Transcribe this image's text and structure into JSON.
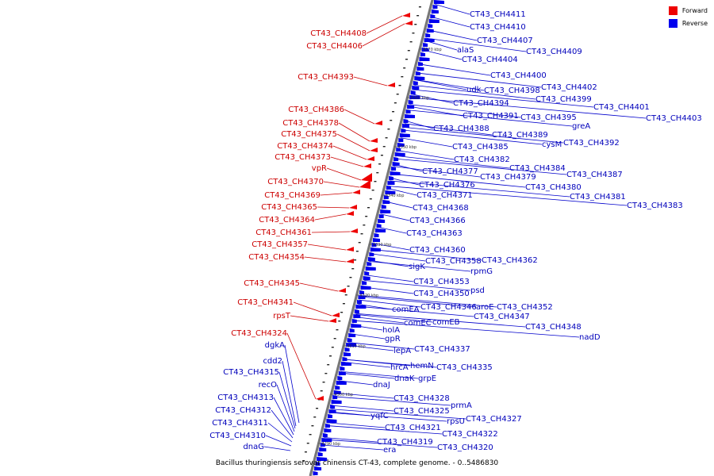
{
  "legend": {
    "forward": {
      "label": "Forward",
      "color": "#ee0000"
    },
    "reverse": {
      "label": "Reverse",
      "color": "#0000ee"
    }
  },
  "caption": "Bacillus thuringiensis serovar chinensis CT-43, complete genome. - 0..5486830",
  "axis_ticks": [
    "4370 kbp",
    "4360 kbp",
    "4350 kbp",
    "4340 kbp",
    "4330 kbp",
    "4320 kbp",
    "4310 kbp",
    "4300 kbp",
    "4290 kbp"
  ],
  "forward_genes": [
    "CT43_CH4408",
    "CT43_CH4406",
    "CT43_CH4393",
    "CT43_CH4386",
    "CT43_CH4378",
    "CT43_CH4375",
    "CT43_CH4374",
    "CT43_CH4373",
    "vpR",
    "CT43_CH4370",
    "CT43_CH4369",
    "CT43_CH4365",
    "CT43_CH4364",
    "CT43_CH4361",
    "CT43_CH4357",
    "CT43_CH4354",
    "CT43_CH4345",
    "CT43_CH4341",
    "rpsT",
    "CT43_CH4324"
  ],
  "reverse_left_genes": [
    "dgkA",
    "cdd2",
    "CT43_CH4315",
    "recO",
    "CT43_CH4313",
    "CT43_CH4312",
    "CT43_CH4311",
    "CT43_CH4310",
    "dnaG"
  ],
  "reverse_genes": [
    "CT43_CH4411",
    "CT43_CH4410",
    "CT43_CH4407",
    "CT43_CH4409",
    "alaS",
    "CT43_CH4404",
    "CT43_CH4400",
    "CT43_CH4402",
    "udk",
    "CT43_CH4398",
    "CT43_CH4399",
    "CT43_CH4401",
    "CT43_CH4403",
    "CT43_CH4394",
    "CT43_CH4391",
    "CT43_CH4395",
    "greA",
    "CT43_CH4388",
    "CT43_CH4389",
    "cysM",
    "CT43_CH4392",
    "CT43_CH4385",
    "CT43_CH4382",
    "CT43_CH4384",
    "CT43_CH4377",
    "CT43_CH4379",
    "CT43_CH4387",
    "CT43_CH4376",
    "CT43_CH4380",
    "CT43_CH4371",
    "CT43_CH4381",
    "CT43_CH4383",
    "CT43_CH4368",
    "CT43_CH4366",
    "CT43_CH4363",
    "CT43_CH4360",
    "CT43_CH4358",
    "CT43_CH4362",
    "sigK",
    "rpmG",
    "CT43_CH4353",
    "CT43_CH4350",
    "psd",
    "comEA",
    "CT43_CH4346",
    "aroE",
    "CT43_CH4352",
    "CT43_CH4347",
    "comEC",
    "comEB",
    "CT43_CH4348",
    "holA",
    "nadD",
    "gpR",
    "lepA",
    "CT43_CH4337",
    "hemN",
    "hrcA",
    "CT43_CH4335",
    "dnaK",
    "grpE",
    "dnaJ",
    "CT43_CH4328",
    "prmA",
    "CT43_CH4325",
    "yqfC",
    "rpsU",
    "CT43_CH4327",
    "CT43_CH4321",
    "CT43_CH4322",
    "CT43_CH4319",
    "era",
    "CT43_CH4320"
  ]
}
